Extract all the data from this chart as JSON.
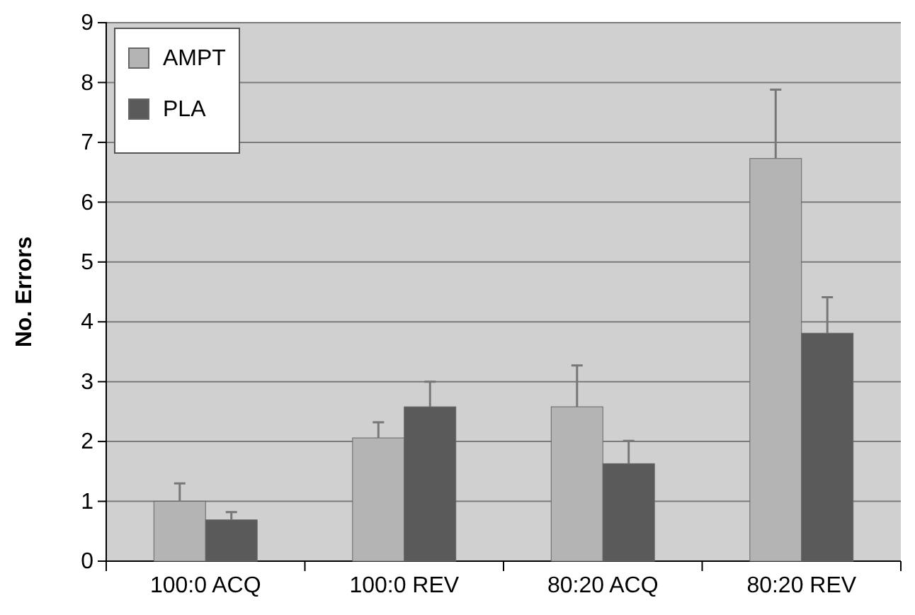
{
  "chart_data": {
    "type": "bar",
    "ylabel": "No. Errors",
    "categories": [
      "100:0 ACQ",
      "100:0 REV",
      "80:20 ACQ",
      "80:20 REV"
    ],
    "series": [
      {
        "name": "AMPT",
        "color": "#b4b4b4",
        "values": [
          1.0,
          2.06,
          2.58,
          6.73
        ],
        "errors": [
          [
            1.0,
            1.3
          ],
          [
            2.06,
            2.32
          ],
          [
            2.58,
            3.27
          ],
          [
            6.73,
            7.88
          ]
        ]
      },
      {
        "name": "PLA",
        "color": "#5a5a5a",
        "values": [
          0.69,
          2.58,
          1.63,
          3.81
        ],
        "errors": [
          [
            0.69,
            0.82
          ],
          [
            2.58,
            3.0
          ],
          [
            1.63,
            2.01
          ],
          [
            3.81,
            4.41
          ]
        ]
      }
    ],
    "ylim": [
      0,
      9
    ],
    "yticks": [
      0,
      1,
      2,
      3,
      4,
      5,
      6,
      7,
      8,
      9
    ],
    "grid": "y",
    "legend": "top left"
  }
}
